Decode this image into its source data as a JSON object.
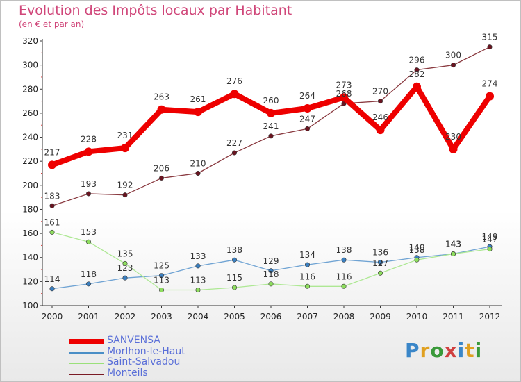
{
  "title": "Evolution des Impôts locaux par Habitant",
  "subtitle": "(en € et par an)",
  "brand": "Proxiti",
  "chart_data": {
    "type": "line",
    "x": [
      2000,
      2001,
      2002,
      2003,
      2004,
      2005,
      2006,
      2007,
      2008,
      2009,
      2010,
      2011,
      2012
    ],
    "ylim": [
      100,
      320
    ],
    "yticks": [
      100,
      120,
      140,
      160,
      180,
      200,
      220,
      240,
      260,
      280,
      300,
      320
    ],
    "grid": false,
    "legend": "bottom-left",
    "series": [
      {
        "name": "SANVENSA",
        "color": "#ee0000",
        "values": [
          217,
          228,
          231,
          263,
          261,
          276,
          260,
          264,
          273,
          246,
          282,
          230,
          274
        ]
      },
      {
        "name": "Morlhon-le-Haut",
        "color": "#4a8ec6",
        "values": [
          114,
          118,
          123,
          125,
          133,
          138,
          129,
          134,
          138,
          136,
          140,
          143,
          149
        ]
      },
      {
        "name": "Saint-Salvadou",
        "color": "#9ae07a",
        "values": [
          161,
          153,
          135,
          113,
          113,
          115,
          118,
          116,
          116,
          127,
          138,
          143,
          147
        ]
      },
      {
        "name": "Monteils",
        "color": "#7a1b25",
        "values": [
          183,
          193,
          192,
          206,
          210,
          227,
          241,
          247,
          268,
          270,
          296,
          300,
          315
        ]
      }
    ]
  }
}
